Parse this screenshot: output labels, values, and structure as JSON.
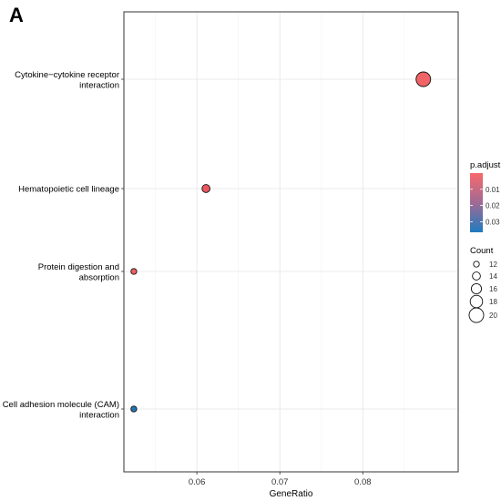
{
  "panel_label": "A",
  "chart_data": {
    "type": "scatter",
    "xlabel": "GeneRatio",
    "ylabel": "",
    "xlim": [
      0.0512,
      0.0915
    ],
    "x_ticks": [
      0.06,
      0.07,
      0.08
    ],
    "x_tick_labels": [
      "0.06",
      "0.07",
      "0.08"
    ],
    "grid": true,
    "categories": [
      "Cytokine−cytokine receptor interaction",
      "Hematopoietic cell lineage",
      "Protein digestion and absorption",
      "Cell adhesion molecule (CAM) interaction"
    ],
    "category_label_lines": [
      [
        "Cytokine−cytokine receptor",
        "interaction"
      ],
      [
        "Hematopoietic cell lineage"
      ],
      [
        "Protein digestion and",
        "absorption"
      ],
      [
        "Cell adhesion molecule (CAM)",
        "interaction"
      ]
    ],
    "points": [
      {
        "category": "Cytokine−cytokine receptor interaction",
        "gene_ratio": 0.0873,
        "count": 20,
        "p_adjust": 0.0005,
        "color": "#f06466"
      },
      {
        "category": "Hematopoietic cell lineage",
        "gene_ratio": 0.0611,
        "count": 14,
        "p_adjust": 0.0025,
        "color": "#e9585f"
      },
      {
        "category": "Protein digestion and absorption",
        "gene_ratio": 0.0524,
        "count": 12,
        "p_adjust": 0.0015,
        "color": "#ee5f62"
      },
      {
        "category": "Cell adhesion molecule (CAM) interaction",
        "gene_ratio": 0.0524,
        "count": 12,
        "p_adjust": 0.0345,
        "color": "#1f77b4"
      }
    ],
    "color_legend": {
      "title": "p.adjust",
      "ticks": [
        0.01,
        0.02,
        0.03
      ],
      "tick_labels": [
        "0.01",
        "0.02",
        "0.03"
      ],
      "range": [
        0.0,
        0.0365
      ],
      "low_color": "#f8696b",
      "high_color": "#1f7bbf"
    },
    "size_legend": {
      "title": "Count",
      "values": [
        12,
        14,
        16,
        18,
        20
      ],
      "labels": [
        "12",
        "14",
        "16",
        "18",
        "20"
      ]
    }
  }
}
